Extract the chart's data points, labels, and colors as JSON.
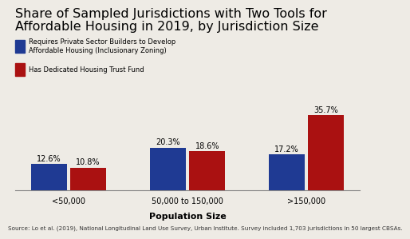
{
  "title_line1": "Share of Sampled Jurisdictions with Two Tools for",
  "title_line2": "Affordable Housing in 2019, by Jurisdiction Size",
  "categories": [
    "<50,000",
    "50,000 to 150,000",
    ">150,000"
  ],
  "blue_values": [
    12.6,
    20.3,
    17.2
  ],
  "red_values": [
    10.8,
    18.6,
    35.7
  ],
  "blue_color": "#1f3a93",
  "red_color": "#aa1111",
  "xlabel": "Population Size",
  "ylim": [
    0,
    42
  ],
  "legend_blue": "Requires Private Sector Builders to Develop\nAffordable Housing (Inclusionary Zoning)",
  "legend_red": "Has Dedicated Housing Trust Fund",
  "source": "Source: Lo et al. (2019), National Longitudinal Land Use Survey, Urban Institute. Survey included 1,703 jurisdictions in 50 largest CBSAs.",
  "background_color": "#eeebe5",
  "title_fontsize": 11.5,
  "tick_fontsize": 7,
  "bar_label_fontsize": 7,
  "legend_fontsize": 6,
  "source_fontsize": 5.2,
  "xlabel_fontsize": 8
}
